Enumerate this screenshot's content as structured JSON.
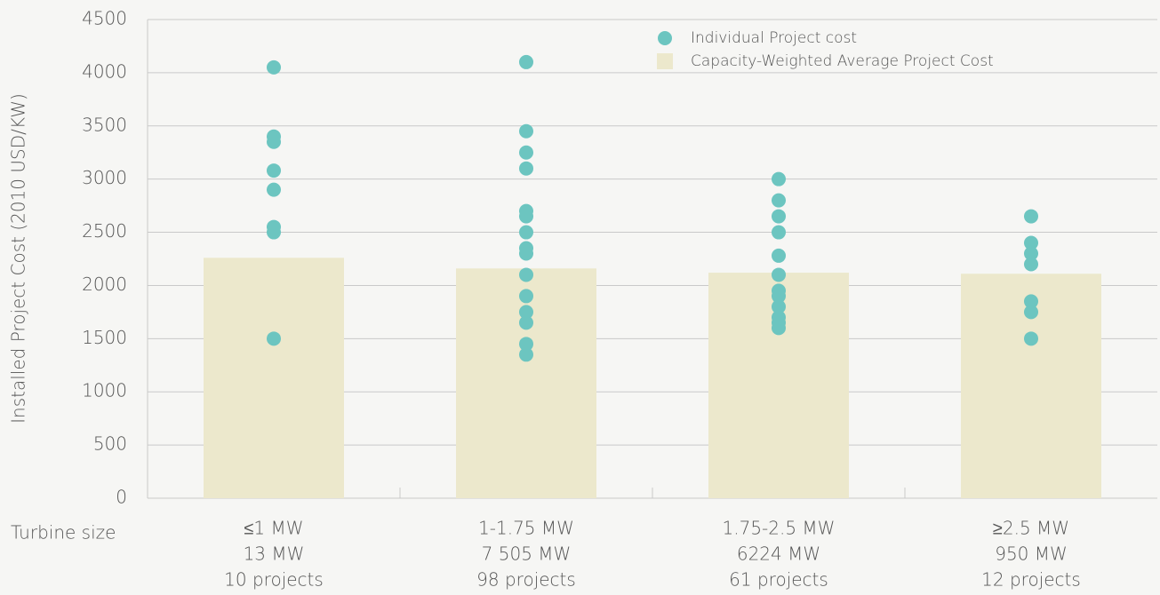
{
  "chart_data": {
    "type": "bar_scatter",
    "y_label": "Installed Project Cost (2010 USD/KW)",
    "x_label": "Turbine size",
    "categories": [
      [
        "≤1 MW",
        "13 MW",
        "10 projects"
      ],
      [
        "1-1.75 MW",
        "7 505 MW",
        "98 projects"
      ],
      [
        "1.75-2.5 MW",
        "6224 MW",
        "61 projects"
      ],
      [
        "≥2.5 MW",
        "950 MW",
        "12 projects"
      ]
    ],
    "series": [
      {
        "name": "Individual Project cost",
        "type": "scatter",
        "color": "#6cc5c0",
        "values": [
          [
            4050,
            3400,
            3350,
            3080,
            2900,
            2550,
            2500,
            1500
          ],
          [
            4100,
            3450,
            3250,
            3100,
            2700,
            2650,
            2500,
            2350,
            2300,
            2100,
            1900,
            1750,
            1650,
            1450,
            1350
          ],
          [
            3000,
            2800,
            2650,
            2500,
            2280,
            2100,
            1950,
            1900,
            1800,
            1700,
            1650,
            1600
          ],
          [
            2650,
            2400,
            2300,
            2200,
            1850,
            1750,
            1500
          ]
        ]
      },
      {
        "name": "Capacity-Weighted Average Project Cost",
        "type": "bar",
        "color": "#ece8cc",
        "values": [
          2260,
          2160,
          2120,
          2110
        ]
      }
    ],
    "ylim": [
      0,
      4500
    ],
    "yticks": [
      0,
      500,
      1000,
      1500,
      2000,
      2500,
      3000,
      3500,
      4000,
      4500
    ],
    "grid": true,
    "legend": "top"
  }
}
